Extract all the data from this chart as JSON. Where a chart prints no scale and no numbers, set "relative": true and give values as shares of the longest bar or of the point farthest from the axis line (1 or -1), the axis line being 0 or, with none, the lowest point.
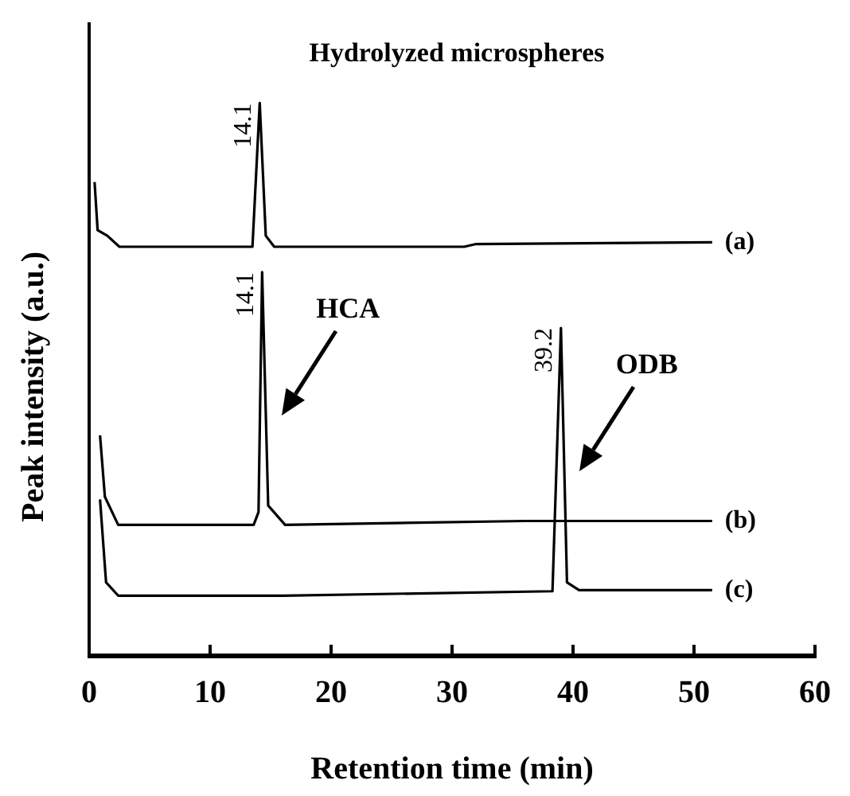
{
  "chart_data": {
    "type": "line",
    "title": "Hydrolyzed microspheres",
    "xlabel": "Retention time (min)",
    "ylabel": "Peak intensity (a.u.)",
    "relative": true,
    "xlim": [
      0,
      60
    ],
    "xticks": [
      0,
      10,
      20,
      30,
      40,
      50,
      60
    ],
    "grid": false,
    "legend": false,
    "marker": "none",
    "line_style": "solid",
    "series": [
      {
        "name": "(a)",
        "color": "#000000",
        "x": [
          0.45,
          0.7,
          1.5,
          2.5,
          13.5,
          14.1,
          14.6,
          15.3,
          31,
          32,
          51.5
        ],
        "values": [
          0.857,
          0.77,
          0.76,
          0.74,
          0.74,
          1.0,
          0.76,
          0.74,
          0.74,
          0.745,
          0.748
        ]
      },
      {
        "name": "(b)",
        "color": "#000000",
        "x": [
          0.9,
          1.3,
          2.4,
          13.6,
          14.0,
          14.3,
          14.8,
          16.2,
          36,
          51.5
        ],
        "values": [
          0.399,
          0.288,
          0.237,
          0.237,
          0.26,
          0.694,
          0.272,
          0.237,
          0.244,
          0.244
        ]
      },
      {
        "name": "(c)",
        "color": "#000000",
        "x": [
          0.9,
          1.4,
          2.4,
          16,
          38.3,
          39.0,
          39.5,
          40.5,
          51.5
        ],
        "values": [
          0.283,
          0.133,
          0.109,
          0.109,
          0.117,
          0.593,
          0.133,
          0.119,
          0.119
        ]
      }
    ],
    "annotations": [
      {
        "text": "14.1",
        "x": 14.1,
        "y": 1.0
      },
      {
        "text": "14.1",
        "x": 14.3,
        "y": 0.694
      },
      {
        "text": "39.2",
        "x": 39.0,
        "y": 0.593
      },
      "HCA",
      "ODB"
    ]
  }
}
